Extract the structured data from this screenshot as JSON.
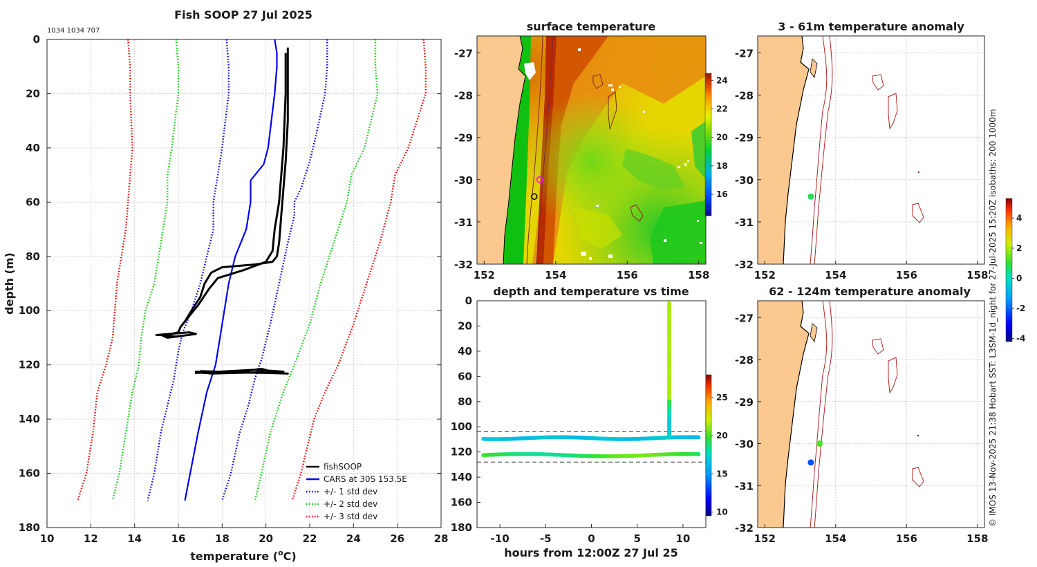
{
  "figure": {
    "title": "Fish SOOP 27 Jul 2025",
    "ids_text": "1034 1034 707",
    "credit": "© IMOS 13-Nov-2025 21:38 Hobart SST: L3SM-1d_night for 27-Jul-2025 15:20Z isobaths: 200  1000m"
  },
  "chart_data": [
    {
      "type": "line",
      "id": "profile",
      "title": "Fish SOOP 27 Jul 2025",
      "xlabel": "temperature (°C)",
      "xlabel_parts": [
        "temperature (",
        "o",
        "C)"
      ],
      "ylabel": "depth (m)",
      "xlim": [
        10,
        28
      ],
      "ylim": [
        180,
        0
      ],
      "xticks": [
        10,
        12,
        14,
        16,
        18,
        20,
        22,
        24,
        26,
        28
      ],
      "yticks": [
        0,
        20,
        40,
        60,
        80,
        100,
        120,
        140,
        160,
        180
      ],
      "legend_position": "bottom-right",
      "series": [
        {
          "name": "fishSOOP",
          "color": "#000000",
          "style": "solid",
          "width": 3,
          "points": [
            [
              21.0,
              3
            ],
            [
              21.0,
              10
            ],
            [
              21.0,
              30
            ],
            [
              20.9,
              45
            ],
            [
              20.8,
              55
            ],
            [
              20.7,
              65
            ],
            [
              20.6,
              75
            ],
            [
              20.5,
              80
            ],
            [
              20.3,
              82
            ],
            [
              19.5,
              83
            ],
            [
              18.0,
              84
            ],
            [
              17.5,
              86
            ],
            [
              17.2,
              90
            ],
            [
              17.0,
              95
            ],
            [
              16.6,
              100
            ],
            [
              16.3,
              104
            ],
            [
              16.1,
              106
            ],
            [
              16.0,
              108
            ],
            [
              15.5,
              109
            ],
            [
              15.0,
              109
            ],
            [
              16.5,
              108
            ],
            [
              16.8,
              108.6
            ],
            [
              15.5,
              110
            ],
            [
              15.3,
              109.3
            ],
            [
              16.0,
              109.6
            ]
          ]
        },
        {
          "name": "fishSOOP",
          "color": "#000000",
          "style": "solid",
          "width": 3,
          "points": [
            [
              20.9,
              5
            ],
            [
              20.9,
              20
            ],
            [
              20.8,
              40
            ],
            [
              20.6,
              60
            ],
            [
              20.4,
              70
            ],
            [
              20.3,
              78
            ],
            [
              20.0,
              82
            ],
            [
              19.0,
              85
            ],
            [
              17.8,
              88
            ],
            [
              17.4,
              92
            ],
            [
              16.9,
              98
            ],
            [
              16.6,
              101
            ],
            [
              16.2,
              105
            ]
          ]
        },
        {
          "name": "fishSOOP",
          "color": "#000000",
          "style": "solid",
          "width": 3,
          "points": [
            [
              17.0,
              122.3
            ],
            [
              19.0,
              122.8
            ],
            [
              21.0,
              123.2
            ],
            [
              18.0,
              122.5
            ],
            [
              16.8,
              123.0
            ],
            [
              19.5,
              121.8
            ],
            [
              20.8,
              122.5
            ],
            [
              17.5,
              123.2
            ],
            [
              16.8,
              122.5
            ],
            [
              20.5,
              123.0
            ],
            [
              19.8,
              121.5
            ],
            [
              18.5,
              122.8
            ],
            [
              17.1,
              123.0
            ]
          ]
        },
        {
          "name": "CARS at 30S 153.5E",
          "color": "#0000ee",
          "style": "solid",
          "width": 2.2,
          "points": [
            [
              20.4,
              0
            ],
            [
              20.5,
              5
            ],
            [
              20.5,
              10
            ],
            [
              20.4,
              20
            ],
            [
              20.1,
              40
            ],
            [
              19.9,
              46
            ],
            [
              19.5,
              50
            ],
            [
              19.3,
              52
            ],
            [
              19.3,
              60
            ],
            [
              19.1,
              70
            ],
            [
              18.6,
              80
            ],
            [
              18.3,
              90
            ],
            [
              18.1,
              100
            ],
            [
              17.9,
              110
            ],
            [
              17.7,
              120
            ],
            [
              17.3,
              130
            ],
            [
              16.9,
              145
            ],
            [
              16.3,
              170
            ]
          ]
        },
        {
          "name": "+/- 1 std dev",
          "color": "#0000ee",
          "style": "dotted",
          "width": 2.2,
          "points": [
            [
              18.2,
              0
            ],
            [
              18.3,
              10
            ],
            [
              18.3,
              20
            ],
            [
              18.0,
              40
            ],
            [
              17.8,
              50
            ],
            [
              17.6,
              60
            ],
            [
              17.6,
              70
            ],
            [
              17.3,
              80
            ],
            [
              17.0,
              90
            ],
            [
              16.6,
              100
            ],
            [
              16.2,
              108
            ],
            [
              16.0,
              115
            ],
            [
              15.8,
              125
            ],
            [
              15.5,
              135
            ],
            [
              15.2,
              145
            ],
            [
              14.9,
              160
            ],
            [
              14.6,
              170
            ]
          ]
        },
        {
          "name": "+/- 1 std dev",
          "color": "#0000ee",
          "style": "dotted",
          "width": 2.2,
          "points": [
            [
              22.8,
              0
            ],
            [
              22.8,
              10
            ],
            [
              22.7,
              20
            ],
            [
              22.3,
              35
            ],
            [
              22.0,
              45
            ],
            [
              21.6,
              55
            ],
            [
              21.3,
              60
            ],
            [
              21.3,
              65
            ],
            [
              21.0,
              75
            ],
            [
              20.6,
              90
            ],
            [
              20.2,
              105
            ],
            [
              19.8,
              118
            ],
            [
              19.5,
              125
            ],
            [
              19.2,
              135
            ],
            [
              18.8,
              145
            ],
            [
              18.4,
              160
            ],
            [
              18.0,
              170
            ]
          ]
        },
        {
          "name": "+/- 2 std dev",
          "color": "#11cc11",
          "style": "dotted",
          "width": 2.2,
          "points": [
            [
              15.9,
              0
            ],
            [
              16.0,
              10
            ],
            [
              16.0,
              20
            ],
            [
              15.7,
              40
            ],
            [
              15.5,
              50
            ],
            [
              15.5,
              60
            ],
            [
              15.2,
              75
            ],
            [
              14.9,
              90
            ],
            [
              14.5,
              100
            ],
            [
              14.3,
              110
            ],
            [
              14.2,
              120
            ],
            [
              13.9,
              130
            ],
            [
              13.6,
              145
            ],
            [
              13.3,
              160
            ],
            [
              13.0,
              170
            ]
          ]
        },
        {
          "name": "+/- 2 std dev",
          "color": "#11cc11",
          "style": "dotted",
          "width": 2.2,
          "points": [
            [
              25.0,
              0
            ],
            [
              25.0,
              10
            ],
            [
              25.1,
              20
            ],
            [
              24.5,
              40
            ],
            [
              23.9,
              50
            ],
            [
              23.7,
              60
            ],
            [
              23.1,
              75
            ],
            [
              22.5,
              90
            ],
            [
              22.0,
              105
            ],
            [
              21.3,
              120
            ],
            [
              20.8,
              130
            ],
            [
              20.2,
              145
            ],
            [
              19.8,
              160
            ],
            [
              19.5,
              170
            ]
          ]
        },
        {
          "name": "+/- 3 std dev",
          "color": "#ee0000",
          "style": "dotted",
          "width": 2.2,
          "points": [
            [
              13.7,
              0
            ],
            [
              13.8,
              10
            ],
            [
              13.8,
              20
            ],
            [
              13.9,
              40
            ],
            [
              13.8,
              50
            ],
            [
              13.7,
              60
            ],
            [
              13.6,
              70
            ],
            [
              13.2,
              90
            ],
            [
              13.1,
              100
            ],
            [
              13.0,
              110
            ],
            [
              12.7,
              120
            ],
            [
              12.3,
              130
            ],
            [
              12.1,
              145
            ],
            [
              11.8,
              160
            ],
            [
              11.4,
              170
            ]
          ]
        },
        {
          "name": "+/- 3 std dev",
          "color": "#ee0000",
          "style": "dotted",
          "width": 2.2,
          "points": [
            [
              27.2,
              0
            ],
            [
              27.3,
              10
            ],
            [
              27.3,
              20
            ],
            [
              26.5,
              40
            ],
            [
              25.9,
              50
            ],
            [
              25.7,
              60
            ],
            [
              25.2,
              75
            ],
            [
              24.6,
              90
            ],
            [
              24.0,
              105
            ],
            [
              23.3,
              120
            ],
            [
              22.7,
              130
            ],
            [
              22.2,
              140
            ],
            [
              21.6,
              160
            ],
            [
              21.2,
              170
            ]
          ]
        }
      ],
      "legend": [
        {
          "label": "fishSOOP",
          "color": "#000000",
          "style": "solid"
        },
        {
          "label": "CARS at 30S 153.5E",
          "color": "#0000ee",
          "style": "solid"
        },
        {
          "label": "+/- 1 std dev",
          "color": "#0000ee",
          "style": "dotted"
        },
        {
          "label": "+/- 2 std dev",
          "color": "#11cc11",
          "style": "dotted"
        },
        {
          "label": "+/- 3 std dev",
          "color": "#ee0000",
          "style": "dotted"
        }
      ]
    },
    {
      "type": "heatmap",
      "id": "sst_map",
      "title": "surface temperature",
      "xlim": [
        151.8,
        158.2
      ],
      "ylim": [
        -32,
        -26.6
      ],
      "xticks": [
        152,
        154,
        156,
        158
      ],
      "yticks": [
        -27,
        -28,
        -29,
        -30,
        -31,
        -32
      ],
      "colorbar": {
        "min": 14.5,
        "max": 24.5,
        "ticks": [
          16,
          18,
          20,
          22,
          24
        ]
      },
      "markers": [
        {
          "lon": 153.55,
          "lat": -30.0,
          "style": "magenta-ring"
        },
        {
          "lon": 153.4,
          "lat": -30.4,
          "style": "black-ring"
        }
      ]
    },
    {
      "type": "scatter",
      "id": "depth_time",
      "title": "depth and temperature vs time",
      "xlabel": "hours from 12:00Z 27 Jul 25",
      "xlim": [
        -12.5,
        12.5
      ],
      "ylim": [
        180,
        0
      ],
      "xticks": [
        -10,
        -5,
        0,
        5,
        10
      ],
      "yticks": [
        0,
        20,
        40,
        60,
        80,
        100,
        120,
        140,
        160,
        180
      ],
      "dashed_depths": [
        104,
        128
      ],
      "colorbar": {
        "min": 9.5,
        "max": 28,
        "ticks": [
          10,
          15,
          20,
          25
        ]
      },
      "tracks": [
        {
          "depth": 109,
          "temp": 16.5,
          "from": -11.8,
          "to": 11.8
        },
        {
          "depth": 122.5,
          "temp": 19.5,
          "from": -11.8,
          "to": 11.8
        }
      ],
      "vertical": {
        "hour": 8.5,
        "from_depth": 2,
        "to_depth": 108
      }
    },
    {
      "type": "heatmap",
      "id": "anom_shallow",
      "title": "3 - 61m temperature anomaly",
      "xlim": [
        151.8,
        158.2
      ],
      "ylim": [
        -32,
        -26.6
      ],
      "xticks": [
        152,
        154,
        156,
        158
      ],
      "yticks": [
        -27,
        -28,
        -29,
        -30,
        -31,
        -32
      ],
      "points": [
        {
          "lon": 153.3,
          "lat": -30.4,
          "anomaly": 0.8
        }
      ]
    },
    {
      "type": "heatmap",
      "id": "anom_deep",
      "title": "62 - 124m temperature anomaly",
      "xlim": [
        151.8,
        158.2
      ],
      "ylim": [
        -32,
        -26.6
      ],
      "xticks": [
        152,
        154,
        156,
        158
      ],
      "yticks": [
        -27,
        -28,
        -29,
        -30,
        -31,
        -32
      ],
      "points": [
        {
          "lon": 153.55,
          "lat": -30.0,
          "anomaly": 1.2
        },
        {
          "lon": 153.3,
          "lat": -30.45,
          "anomaly": -2.2
        }
      ],
      "colorbar": {
        "min": -4.2,
        "max": 5.3,
        "ticks": [
          -4,
          -2,
          0,
          2,
          4
        ]
      }
    }
  ]
}
